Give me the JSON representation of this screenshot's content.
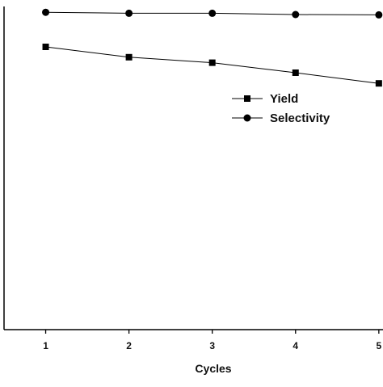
{
  "chart_data": {
    "type": "line",
    "title": "",
    "xlabel": "Cycles",
    "ylabel": "",
    "x": [
      1,
      2,
      3,
      4,
      5
    ],
    "xlim": [
      0.5,
      5.05
    ],
    "ylim": [
      0,
      100
    ],
    "series": [
      {
        "name": "Yield",
        "marker": "square",
        "values": [
          87.5,
          84.3,
          82.6,
          79.5,
          76.2
        ]
      },
      {
        "name": "Selectivity",
        "marker": "circle",
        "values": [
          98.2,
          97.9,
          97.9,
          97.5,
          97.4
        ]
      }
    ],
    "legend": {
      "position": "top-right"
    },
    "grid": false
  }
}
